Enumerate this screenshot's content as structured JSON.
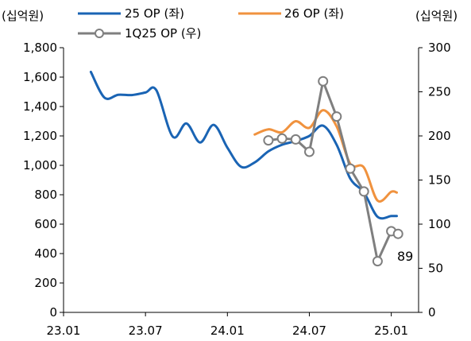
{
  "chart_data": {
    "type": "line",
    "left_unit": "(십억원)",
    "right_unit": "(십억원)",
    "x_ticks": [
      "23.01",
      "23.07",
      "24.01",
      "24.07",
      "25.01"
    ],
    "y_left": {
      "ticks": [
        "0",
        "200",
        "400",
        "600",
        "800",
        "1,000",
        "1,200",
        "1,400",
        "1,600",
        "1,800"
      ],
      "lim": [
        0,
        1800
      ]
    },
    "y_right": {
      "ticks": [
        "0",
        "50",
        "100",
        "150",
        "200",
        "250",
        "300"
      ],
      "lim": [
        0,
        300
      ]
    },
    "legend": [
      "25 OP (좌)",
      "26 OP (좌)",
      "1Q25 OP (우)"
    ],
    "annotation": "89",
    "series": [
      {
        "name": "25 OP (좌)",
        "axis": "left",
        "color": "#1a64b4",
        "points": [
          [
            2.0,
            1635
          ],
          [
            3.0,
            1460
          ],
          [
            4.0,
            1480
          ],
          [
            5.0,
            1478
          ],
          [
            6.0,
            1495
          ],
          [
            6.8,
            1510
          ],
          [
            8.0,
            1195
          ],
          [
            9.0,
            1285
          ],
          [
            10.0,
            1155
          ],
          [
            11.0,
            1275
          ],
          [
            12.0,
            1120
          ],
          [
            13.0,
            990
          ],
          [
            14.0,
            1020
          ],
          [
            15.0,
            1095
          ],
          [
            16.0,
            1140
          ],
          [
            17.0,
            1165
          ],
          [
            18.0,
            1200
          ],
          [
            19.0,
            1270
          ],
          [
            20.0,
            1140
          ],
          [
            21.0,
            910
          ],
          [
            22.0,
            815
          ],
          [
            23.0,
            650
          ],
          [
            24.0,
            655
          ],
          [
            24.4,
            655
          ]
        ]
      },
      {
        "name": "26 OP (좌)",
        "axis": "left",
        "color": "#f0923e",
        "points": [
          [
            14.0,
            1210
          ],
          [
            15.0,
            1245
          ],
          [
            16.0,
            1225
          ],
          [
            17.0,
            1300
          ],
          [
            18.0,
            1255
          ],
          [
            19.0,
            1375
          ],
          [
            20.0,
            1265
          ],
          [
            21.0,
            1010
          ],
          [
            22.0,
            985
          ],
          [
            23.0,
            760
          ],
          [
            24.0,
            820
          ],
          [
            24.4,
            815
          ]
        ]
      },
      {
        "name": "1Q25 OP (우)",
        "axis": "right",
        "color": "#7f7f7f",
        "points": [
          [
            15.0,
            195
          ],
          [
            16.0,
            197
          ],
          [
            17.0,
            196
          ],
          [
            18.0,
            182
          ],
          [
            19.0,
            262
          ],
          [
            20.0,
            222
          ],
          [
            21.0,
            163
          ],
          [
            22.0,
            137
          ],
          [
            23.0,
            58
          ],
          [
            24.0,
            92
          ],
          [
            24.5,
            89
          ]
        ]
      }
    ]
  }
}
